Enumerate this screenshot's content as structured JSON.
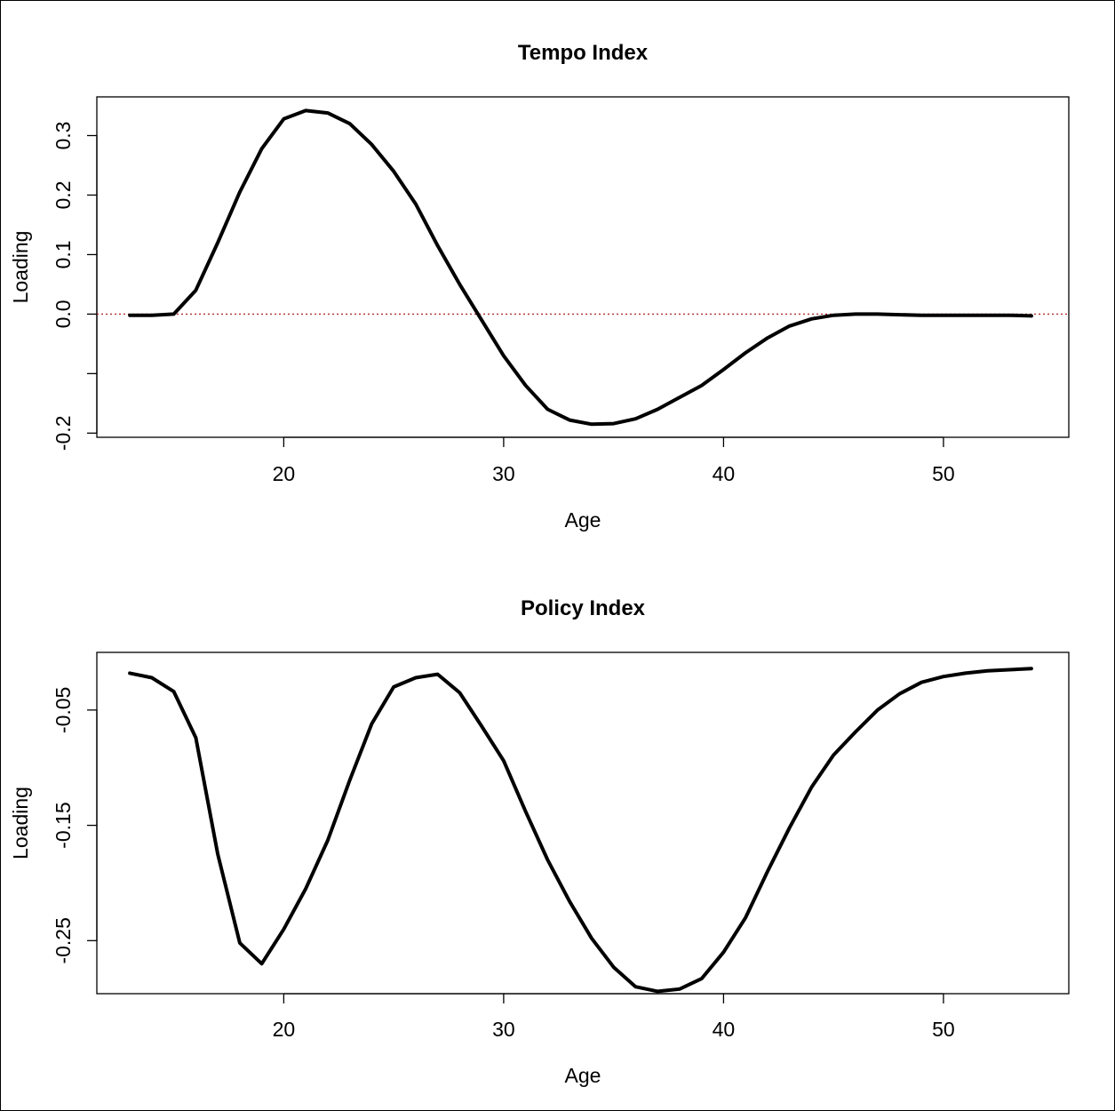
{
  "chart_data": [
    {
      "type": "line",
      "title": "Tempo Index",
      "xlabel": "Age",
      "ylabel": "Loading",
      "xlim": [
        11.5,
        55.7
      ],
      "ylim": [
        -0.207,
        0.365
      ],
      "xticks": [
        20,
        30,
        40,
        50
      ],
      "yticks": [
        -0.2,
        0.0,
        0.1,
        0.2,
        0.3
      ],
      "ytick_labels": [
        "-0.2",
        "0.0",
        "0.1",
        "0.2",
        "0.3"
      ],
      "hline": 0,
      "hline_color": "#b22222",
      "line_color": "#000000",
      "grid": false,
      "x": [
        13,
        14,
        15,
        16,
        17,
        18,
        19,
        20,
        21,
        22,
        23,
        24,
        25,
        26,
        27,
        28,
        29,
        30,
        31,
        32,
        33,
        34,
        35,
        36,
        37,
        38,
        39,
        40,
        41,
        42,
        43,
        44,
        45,
        46,
        47,
        48,
        49,
        50,
        51,
        52,
        53,
        54
      ],
      "y": [
        -0.002,
        -0.002,
        0.0,
        0.04,
        0.12,
        0.205,
        0.278,
        0.328,
        0.342,
        0.338,
        0.32,
        0.285,
        0.24,
        0.185,
        0.115,
        0.05,
        -0.01,
        -0.07,
        -0.12,
        -0.16,
        -0.178,
        -0.185,
        -0.184,
        -0.176,
        -0.16,
        -0.14,
        -0.12,
        -0.093,
        -0.065,
        -0.04,
        -0.02,
        -0.008,
        -0.002,
        0.0,
        0.0,
        -0.001,
        -0.002,
        -0.002,
        -0.002,
        -0.002,
        -0.002,
        -0.003
      ]
    },
    {
      "type": "line",
      "title": "Policy Index",
      "xlabel": "Age",
      "ylabel": "Loading",
      "xlim": [
        11.5,
        55.7
      ],
      "ylim": [
        -0.296,
        0.0
      ],
      "xticks": [
        20,
        30,
        40,
        50
      ],
      "yticks": [
        -0.25,
        -0.15,
        -0.05
      ],
      "ytick_labels": [
        "-0.25",
        "-0.15",
        "-0.05"
      ],
      "line_color": "#000000",
      "grid": false,
      "x": [
        13,
        14,
        15,
        16,
        17,
        18,
        19,
        20,
        21,
        22,
        23,
        24,
        25,
        26,
        27,
        28,
        29,
        30,
        31,
        32,
        33,
        34,
        35,
        36,
        37,
        38,
        39,
        40,
        41,
        42,
        43,
        44,
        45,
        46,
        47,
        48,
        49,
        50,
        51,
        52,
        53,
        54
      ],
      "y": [
        -0.018,
        -0.022,
        -0.034,
        -0.074,
        -0.175,
        -0.252,
        -0.27,
        -0.24,
        -0.205,
        -0.163,
        -0.111,
        -0.062,
        -0.03,
        -0.022,
        -0.019,
        -0.035,
        -0.064,
        -0.094,
        -0.138,
        -0.18,
        -0.216,
        -0.248,
        -0.273,
        -0.29,
        -0.294,
        -0.292,
        -0.283,
        -0.26,
        -0.23,
        -0.19,
        -0.152,
        -0.117,
        -0.089,
        -0.069,
        -0.05,
        -0.036,
        -0.026,
        -0.021,
        -0.018,
        -0.016,
        -0.015,
        -0.014
      ]
    }
  ]
}
